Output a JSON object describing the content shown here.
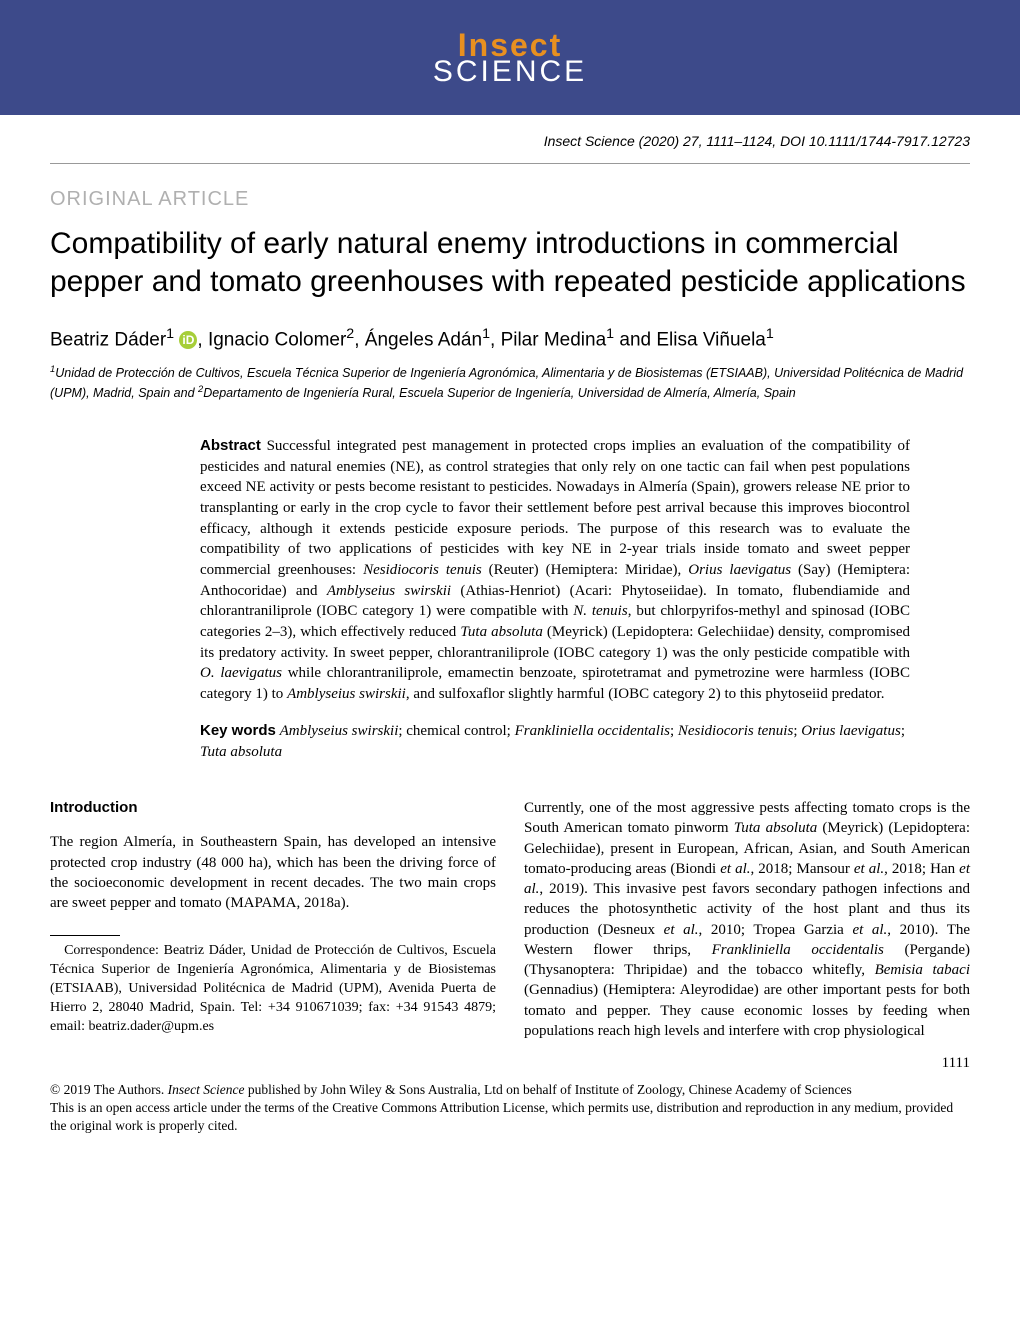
{
  "banner": {
    "logo_top": "Insect",
    "logo_bottom": "SCIENCE",
    "bg_color": "#3d4a8a",
    "top_color": "#e89020",
    "bottom_color": "#ffffff"
  },
  "header": {
    "journal_italic": "Insect Science",
    "citation_rest": " (2020) 27, 1111–1124, DOI 10.1111/1744-7917.12723"
  },
  "section_label": "ORIGINAL ARTICLE",
  "title": "Compatibility of early natural enemy introductions in commercial pepper and tomato greenhouses with repeated pesticide applications",
  "authors": {
    "a1_name": "Beatriz Dáder",
    "a1_sup": "1",
    "a2_name": "Ignacio Colomer",
    "a2_sup": "2",
    "a3_name": "Ángeles Adán",
    "a3_sup": "1",
    "a4_name": "Pilar Medina",
    "a4_sup": "1",
    "a5_name": "Elisa Viñuela",
    "a5_sup": "1",
    "sep1": ", ",
    "sep_and": " and ",
    "orcid_glyph": "iD"
  },
  "affiliations": {
    "sup1": "1",
    "text1": "Unidad de Protección de Cultivos, Escuela Técnica Superior de Ingeniería Agronómica, Alimentaria y de Biosistemas (ETSIAAB), Universidad Politécnica de Madrid (UPM), Madrid, Spain",
    "joiner": " and ",
    "sup2": "2",
    "text2": "Departamento de Ingeniería Rural, Escuela Superior de Ingeniería, Universidad de Almería, Almería, Spain"
  },
  "abstract": {
    "label": "Abstract",
    "p1a": "  Successful integrated pest management in protected crops implies an evaluation of the compatibility of pesticides and natural enemies (NE), as control strategies that only rely on one tactic can fail when pest populations exceed NE activity or pests become resistant to pesticides. Nowadays in Almería (Spain), growers release NE prior to transplanting or early in the crop cycle to favor their settlement before pest arrival because this improves biocontrol efficacy, although it extends pesticide exposure periods. The purpose of this research was to evaluate the compatibility of two applications of pesticides with key NE in 2-year trials inside tomato and sweet pepper commercial greenhouses: ",
    "sp1": "Nesidiocoris tenuis",
    "p1b": " (Reuter) (Hemiptera: Miridae), ",
    "sp2": "Orius laevigatus",
    "p1c": " (Say) (Hemiptera: Anthocoridae) and ",
    "sp3": "Amblyseius swirskii",
    "p1d": " (Athias-Henriot) (Acari: Phytoseiidae). In tomato, flubendiamide and chlorantraniliprole (IOBC category 1) were compatible with ",
    "sp4": "N. tenuis",
    "p1e": ", but chlorpyrifos-methyl and spinosad (IOBC categories 2–3), which effectively reduced ",
    "sp5": "Tuta absoluta",
    "p1f": " (Meyrick) (Lepidoptera: Gelechiidae) density, compromised its predatory activity. In sweet pepper, chlorantraniliprole (IOBC category 1) was the only pesticide compatible with ",
    "sp6": "O. laevigatus",
    "p1g": " while chlorantraniliprole, emamectin benzoate, spirotetramat and pymetrozine were harmless (IOBC category 1) to ",
    "sp7": "Amblyseius swirskii",
    "p1h": ", and sulfoxaflor slightly harmful (IOBC category 2) to this phytoseiid predator."
  },
  "keywords": {
    "label": "Key words",
    "k1": "Amblyseius swirskii",
    "s1": "; chemical control; ",
    "k2": "Frankliniella occidentalis",
    "s2": "; ",
    "k3": "Nesidiocoris tenuis",
    "s3": "; ",
    "k4": "Orius laevigatus",
    "s4": "; ",
    "k5": "Tuta absoluta"
  },
  "intro": {
    "heading": "Introduction",
    "col1_p1": "The region Almería, in Southeastern Spain, has developed an intensive protected crop industry (48 000 ha), which has been the driving force of the socioeconomic development in recent decades. The two main crops are sweet pepper and tomato (MAPAMA, 2018a).",
    "col2_a": "Currently, one of the most aggressive pests affecting tomato crops is the South American tomato pinworm ",
    "col2_sp1": "Tuta absoluta",
    "col2_b": " (Meyrick) (Lepidoptera: Gelechiidae), present in European, African, Asian, and South American tomato-producing areas (Biondi ",
    "col2_etal1": "et al.",
    "col2_c": ", 2018; Mansour ",
    "col2_etal2": "et al.",
    "col2_d": ", 2018; Han ",
    "col2_etal3": "et al.",
    "col2_e": ", 2019). This invasive pest favors secondary pathogen infections and reduces the photosynthetic activity of the host plant and thus its production (Desneux ",
    "col2_etal4": "et al.",
    "col2_f": ", 2010; Tropea Garzia ",
    "col2_etal5": "et al.",
    "col2_g": ", 2010). The Western flower thrips, ",
    "col2_sp2": "Frankliniella occidentalis",
    "col2_h": " (Pergande) (Thysanoptera: Thripidae) and the tobacco whitefly, ",
    "col2_sp3": "Bemisia tabaci",
    "col2_i": " (Gennadius) (Hemiptera: Aleyrodidae) are other important pests for both tomato and pepper. They cause economic losses by feeding when populations reach high levels and interfere with crop physiological"
  },
  "correspondence": {
    "text": "Correspondence: Beatriz Dáder, Unidad de Protección de Cultivos, Escuela Técnica Superior de Ingeniería Agronómica, Alimentaria y de Biosistemas (ETSIAAB), Universidad Politécnica de Madrid (UPM), Avenida Puerta de Hierro 2, 28040 Madrid, Spain. Tel: +34 910671039; fax: +34 91543 4879; email: beatriz.dader@upm.es"
  },
  "page_number": "1111",
  "footer": {
    "copyright_a": "© 2019 The Authors. ",
    "copyright_journal": "Insect Science",
    "copyright_b": " published by John Wiley & Sons Australia, Ltd on behalf of Institute of Zoology, Chinese Academy of Sciences",
    "license": "This is an open access article under the terms of the Creative Commons Attribution License, which permits use, distribution and reproduction in any medium, provided the original work is properly cited."
  }
}
